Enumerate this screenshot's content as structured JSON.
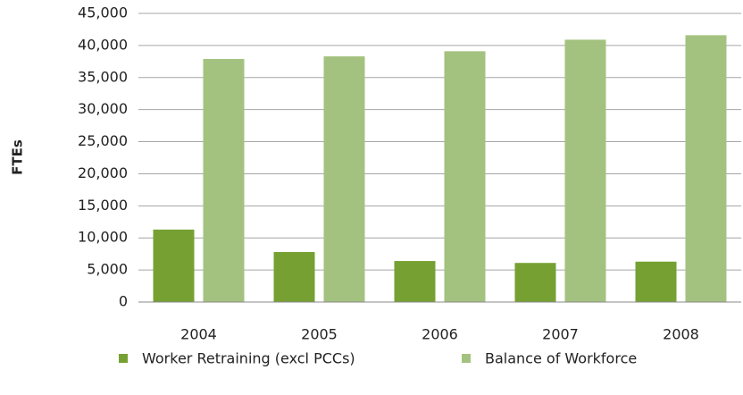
{
  "chart_data": {
    "type": "bar",
    "y_label": "FTEs",
    "categories": [
      "2004",
      "2005",
      "2006",
      "2007",
      "2008"
    ],
    "series": [
      {
        "name": "Worker Retraining (excl PCCs)",
        "color": "#76a132",
        "values": [
          11300,
          7800,
          6400,
          6100,
          6300
        ]
      },
      {
        "name": "Balance of Workforce",
        "color": "#a3c27f",
        "values": [
          37900,
          38300,
          39100,
          40900,
          41600
        ]
      }
    ],
    "ylim": [
      0,
      45000
    ],
    "yticks": [
      0,
      {
        "value": 5000,
        "label": "5,000"
      },
      {
        "value": 10000,
        "label": "10,000"
      },
      {
        "value": 15000,
        "label": "15,000"
      },
      {
        "value": 20000,
        "label": "20,000"
      },
      {
        "value": 25000,
        "label": "25,000"
      },
      {
        "value": 30000,
        "label": "30,000"
      },
      {
        "value": 35000,
        "label": "35,000"
      },
      {
        "value": 40000,
        "label": "40,000"
      },
      {
        "value": 45000,
        "label": "45,000"
      }
    ],
    "grid": true,
    "legend": "bottom"
  }
}
